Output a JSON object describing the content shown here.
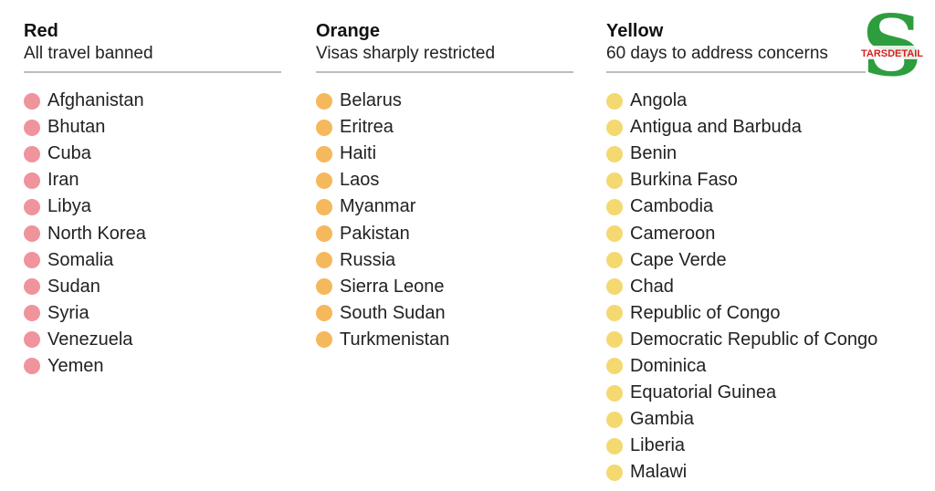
{
  "categories": [
    {
      "key": "red",
      "title": "Red",
      "subtitle": "All travel banned",
      "color": "#ef949c",
      "countries": [
        "Afghanistan",
        "Bhutan",
        "Cuba",
        "Iran",
        "Libya",
        "North Korea",
        "Somalia",
        "Sudan",
        "Syria",
        "Venezuela",
        "Yemen"
      ]
    },
    {
      "key": "orange",
      "title": "Orange",
      "subtitle": "Visas sharply restricted",
      "color": "#f6b85c",
      "countries": [
        "Belarus",
        "Eritrea",
        "Haiti",
        "Laos",
        "Myanmar",
        "Pakistan",
        "Russia",
        "Sierra Leone",
        "South Sudan",
        "Turkmenistan"
      ]
    },
    {
      "key": "yellow",
      "title": "Yellow",
      "subtitle": "60 days to address concerns",
      "color": "#f4d971",
      "countries": [
        "Angola",
        "Antigua and Barbuda",
        "Benin",
        "Burkina Faso",
        "Cambodia",
        "Cameroon",
        "Cape Verde",
        "Chad",
        "Republic of Congo",
        "Democratic Republic of Congo",
        "Dominica",
        "Equatorial Guinea",
        "Gambia",
        "Liberia",
        "Malawi"
      ]
    }
  ],
  "watermark": {
    "text": "TARSDETAIL",
    "letter": "S",
    "color": "#2e9d3e",
    "text_color": "#d81e1e",
    "icon": "s-logo-icon"
  }
}
